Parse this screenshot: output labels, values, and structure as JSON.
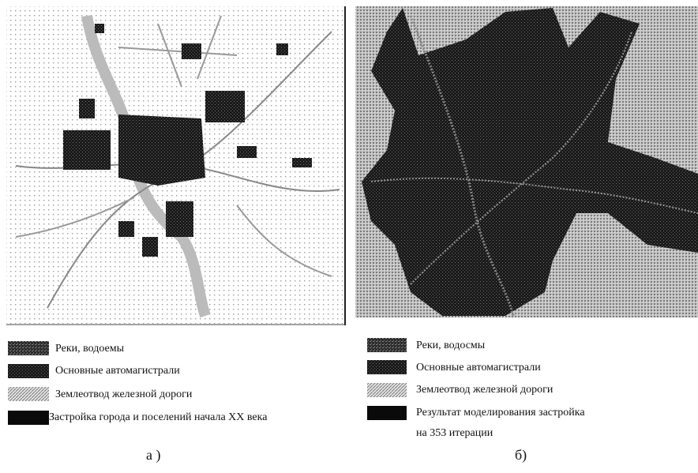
{
  "left": {
    "legend": [
      "Реки, водоемы",
      "Основные автомагистрали",
      "Землеотвод  железной дороги",
      "Застройка города и поселений начала XX века"
    ],
    "caption": "а )"
  },
  "right": {
    "legend": [
      "Реки, водосмы",
      "Основные автомагистрали",
      "Землеотвод  железной дороги",
      "Результат моделирования застройка"
    ],
    "legend_note": "на 353 итерации",
    "caption": "б)"
  }
}
